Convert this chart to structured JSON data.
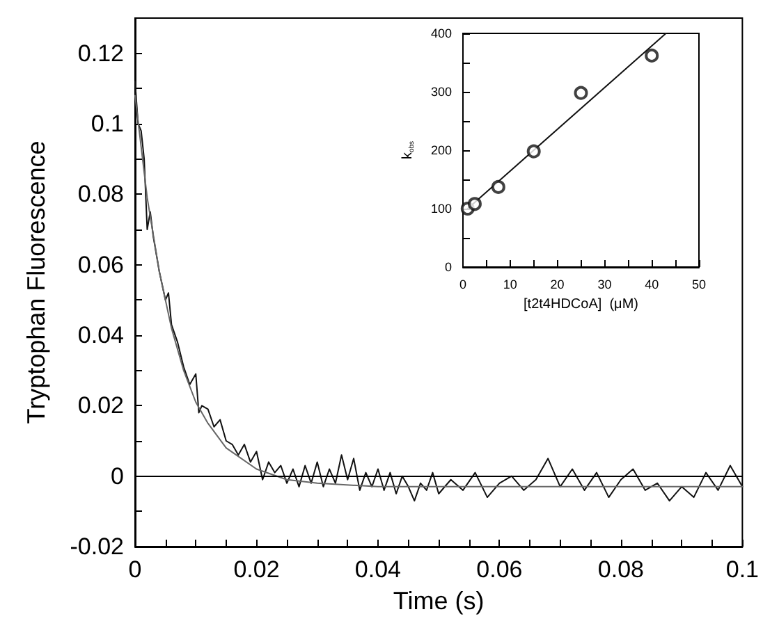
{
  "chart_data": [
    {
      "type": "line",
      "xlabel": "Time (s)",
      "ylabel": "Tryptophan Fluorescence",
      "xlim": [
        0,
        0.1
      ],
      "ylim": [
        -0.02,
        0.13
      ],
      "xticks": [
        0,
        {
          "value": 0.005,
          "label": null
        },
        {
          "value": 0.01,
          "label": null
        },
        {
          "value": 0.015,
          "label": null
        },
        0.02,
        {
          "value": 0.025,
          "label": null
        },
        {
          "value": 0.03,
          "label": null
        },
        {
          "value": 0.035,
          "label": null
        },
        0.04,
        {
          "value": 0.045,
          "label": null
        },
        {
          "value": 0.05,
          "label": null
        },
        {
          "value": 0.055,
          "label": null
        },
        0.06,
        {
          "value": 0.065,
          "label": null
        },
        {
          "value": 0.07,
          "label": null
        },
        {
          "value": 0.075,
          "label": null
        },
        0.08,
        {
          "value": 0.085,
          "label": null
        },
        {
          "value": 0.09,
          "label": null
        },
        {
          "value": 0.095,
          "label": null
        },
        0.1
      ],
      "yticks": [
        -0.02,
        {
          "value": -0.01,
          "label": null
        },
        0,
        {
          "value": 0.01,
          "label": null
        },
        0.02,
        {
          "value": 0.03,
          "label": null
        },
        0.04,
        {
          "value": 0.05,
          "label": null
        },
        0.06,
        {
          "value": 0.07,
          "label": null
        },
        0.08,
        {
          "value": 0.09,
          "label": null
        },
        0.1,
        {
          "value": 0.11,
          "label": null
        },
        0.12
      ],
      "grid": false,
      "marker": "none",
      "line_style": "solid",
      "ref_lines": [
        {
          "axis": "y",
          "value": 0,
          "color": "#000000"
        }
      ],
      "series": [
        {
          "color": "#111111",
          "x": [
            0,
            0.0005,
            0.001,
            0.0015,
            0.002,
            0.0025,
            0.003,
            0.004,
            0.005,
            0.0055,
            0.006,
            0.007,
            0.008,
            0.009,
            0.01,
            0.0105,
            0.011,
            0.012,
            0.013,
            0.014,
            0.015,
            0.016,
            0.017,
            0.018,
            0.019,
            0.02,
            0.021,
            0.022,
            0.023,
            0.024,
            0.025,
            0.026,
            0.027,
            0.028,
            0.029,
            0.03,
            0.031,
            0.032,
            0.033,
            0.034,
            0.035,
            0.036,
            0.037,
            0.038,
            0.039,
            0.04,
            0.041,
            0.042,
            0.043,
            0.044,
            0.045,
            0.046,
            0.047,
            0.048,
            0.049,
            0.05,
            0.052,
            0.054,
            0.056,
            0.058,
            0.06,
            0.062,
            0.064,
            0.066,
            0.068,
            0.07,
            0.072,
            0.074,
            0.076,
            0.078,
            0.08,
            0.082,
            0.084,
            0.086,
            0.088,
            0.09,
            0.092,
            0.094,
            0.096,
            0.098,
            0.1
          ],
          "values": [
            0.112,
            0.1,
            0.098,
            0.09,
            0.07,
            0.075,
            0.068,
            0.058,
            0.05,
            0.052,
            0.043,
            0.038,
            0.031,
            0.026,
            0.029,
            0.018,
            0.02,
            0.019,
            0.014,
            0.016,
            0.01,
            0.009,
            0.006,
            0.009,
            0.004,
            0.007,
            -0.001,
            0.004,
            0.001,
            0.003,
            -0.002,
            0.002,
            -0.003,
            0.003,
            -0.002,
            0.004,
            -0.003,
            0.002,
            -0.002,
            0.006,
            -0.001,
            0.005,
            -0.004,
            0.001,
            -0.003,
            0.002,
            -0.004,
            0.001,
            -0.005,
            0,
            -0.003,
            -0.007,
            -0.002,
            -0.004,
            0.001,
            -0.005,
            -0.001,
            -0.004,
            0.001,
            -0.006,
            -0.002,
            0,
            -0.004,
            -0.001,
            0.005,
            -0.003,
            0.002,
            -0.004,
            0.001,
            -0.006,
            -0.001,
            0.002,
            -0.004,
            -0.002,
            -0.007,
            -0.003,
            -0.006,
            0.001,
            -0.004,
            0.003,
            -0.003
          ]
        },
        {
          "color": "#666666",
          "x": [
            0,
            0.002,
            0.004,
            0.006,
            0.008,
            0.01,
            0.012,
            0.015,
            0.02,
            0.025,
            0.03,
            0.04,
            0.05,
            0.06,
            0.08,
            0.1
          ],
          "values": [
            0.108,
            0.079,
            0.058,
            0.042,
            0.03,
            0.021,
            0.015,
            0.008,
            0.002,
            -0.001,
            -0.002,
            -0.003,
            -0.003,
            -0.003,
            -0.003,
            -0.003
          ]
        }
      ]
    },
    {
      "type": "scatter",
      "xlabel": "[t2t4HDCoA]  (μM)",
      "ylabel": "k$_{obs}$",
      "xlim": [
        0,
        50
      ],
      "ylim": [
        0,
        400
      ],
      "xticks": [
        0,
        {
          "value": 5,
          "label": null
        },
        10,
        {
          "value": 15,
          "label": null
        },
        20,
        {
          "value": 25,
          "label": null
        },
        30,
        {
          "value": 35,
          "label": null
        },
        40,
        {
          "value": 45,
          "label": null
        },
        50
      ],
      "yticks": [
        0,
        {
          "value": 50,
          "label": null
        },
        100,
        {
          "value": 150,
          "label": null
        },
        200,
        {
          "value": 250,
          "label": null
        },
        300,
        {
          "value": 350,
          "label": null
        },
        400
      ],
      "grid": false,
      "marker": "circle",
      "series": [
        {
          "color": "#111111",
          "x": [
            1,
            2.5,
            7.5,
            15,
            25,
            40
          ],
          "values": [
            100,
            108,
            137,
            198,
            298,
            362
          ]
        },
        {
          "type": "line",
          "marker": "none",
          "color": "#111111",
          "x": [
            1,
            43
          ],
          "values": [
            100,
            400
          ]
        }
      ]
    }
  ]
}
